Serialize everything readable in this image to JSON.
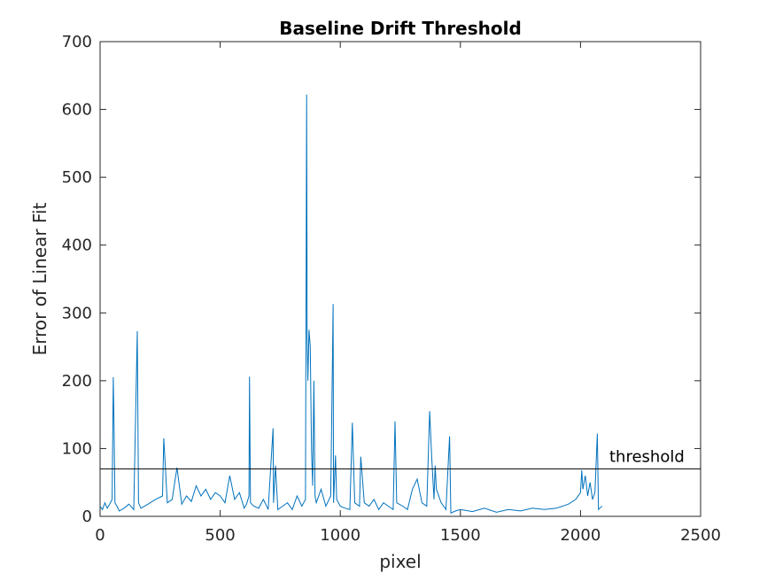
{
  "chart_data": {
    "type": "line",
    "title": "Baseline Drift Threshold",
    "xlabel": "pixel",
    "ylabel": "Error of Linear Fit",
    "xlim": [
      0,
      2500
    ],
    "ylim": [
      0,
      700
    ],
    "xticks": [
      0,
      500,
      1000,
      1500,
      2000,
      2500
    ],
    "yticks": [
      0,
      100,
      200,
      300,
      400,
      500,
      600,
      700
    ],
    "grid": false,
    "series_color": "#0072BD",
    "threshold": {
      "label": "threshold",
      "value": 70,
      "color": "#000000"
    },
    "series": [
      {
        "x": [
          0,
          10,
          20,
          30,
          40,
          50,
          55,
          58,
          62,
          70,
          80,
          100,
          120,
          140,
          155,
          160,
          170,
          200,
          230,
          260,
          265,
          280,
          300,
          320,
          340,
          360,
          380,
          400,
          420,
          440,
          460,
          480,
          500,
          520,
          540,
          560,
          580,
          600,
          610,
          620,
          622,
          626,
          640,
          660,
          680,
          700,
          720,
          722,
          730,
          740,
          760,
          780,
          800,
          820,
          840,
          855,
          860,
          862,
          865,
          870,
          875,
          880,
          885,
          890,
          895,
          900,
          920,
          940,
          960,
          968,
          970,
          972,
          980,
          985,
          1000,
          1020,
          1040,
          1050,
          1060,
          1080,
          1085,
          1100,
          1120,
          1140,
          1160,
          1180,
          1200,
          1220,
          1228,
          1235,
          1260,
          1280,
          1300,
          1320,
          1340,
          1360,
          1372,
          1380,
          1390,
          1395,
          1400,
          1420,
          1440,
          1455,
          1460,
          1480,
          1500,
          1550,
          1600,
          1650,
          1700,
          1750,
          1800,
          1850,
          1900,
          1950,
          1980,
          2000,
          2005,
          2010,
          2020,
          2030,
          2040,
          2050,
          2060,
          2070,
          2075,
          2080,
          2090
        ],
        "y": [
          15,
          10,
          20,
          12,
          18,
          25,
          205,
          140,
          20,
          15,
          8,
          12,
          18,
          10,
          273,
          20,
          12,
          18,
          25,
          30,
          115,
          20,
          25,
          72,
          18,
          30,
          22,
          45,
          30,
          40,
          25,
          35,
          30,
          20,
          60,
          25,
          35,
          12,
          18,
          30,
          206,
          20,
          15,
          12,
          25,
          10,
          130,
          20,
          75,
          10,
          15,
          20,
          10,
          30,
          15,
          25,
          622,
          265,
          200,
          275,
          250,
          100,
          45,
          200,
          30,
          20,
          40,
          15,
          30,
          245,
          313,
          20,
          90,
          25,
          15,
          12,
          10,
          138,
          20,
          15,
          88,
          20,
          15,
          25,
          10,
          20,
          15,
          10,
          140,
          20,
          15,
          10,
          40,
          55,
          20,
          15,
          155,
          90,
          25,
          75,
          40,
          20,
          10,
          118,
          5,
          8,
          10,
          7,
          12,
          6,
          10,
          8,
          12,
          10,
          12,
          18,
          25,
          35,
          68,
          40,
          60,
          30,
          50,
          25,
          35,
          122,
          10,
          12,
          15
        ]
      }
    ]
  }
}
